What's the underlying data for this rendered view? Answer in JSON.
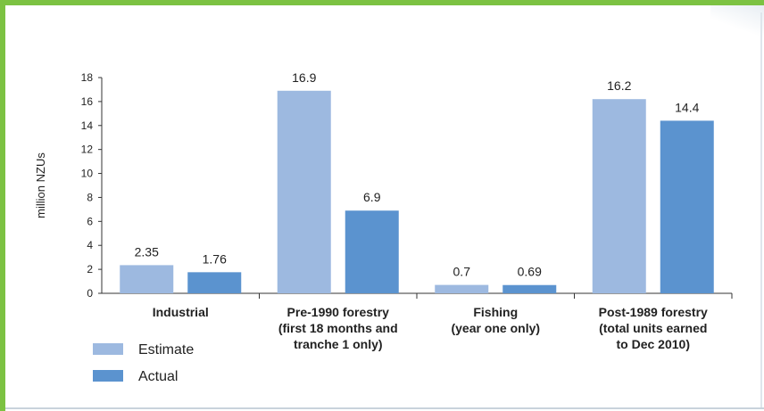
{
  "chart_data": {
    "type": "bar",
    "ylabel": "million NZUs",
    "ylim": [
      0,
      18
    ],
    "yticks": [
      0,
      2,
      4,
      6,
      8,
      10,
      12,
      14,
      16,
      18
    ],
    "categories": [
      [
        "Industrial"
      ],
      [
        "Pre-1990 forestry",
        "(first 18 months and",
        "tranche 1 only)"
      ],
      [
        "Fishing",
        "(year one only)"
      ],
      [
        "Post-1989 forestry",
        "(total units earned",
        "to Dec 2010)"
      ]
    ],
    "series": [
      {
        "name": "Estimate",
        "color": "#9db9e0",
        "values": [
          2.35,
          16.9,
          0.7,
          16.2
        ],
        "labels": [
          "2.35",
          "16.9",
          "0.7",
          "16.2"
        ]
      },
      {
        "name": "Actual",
        "color": "#5b93cf",
        "values": [
          1.76,
          6.9,
          0.69,
          14.4
        ],
        "labels": [
          "1.76",
          "6.9",
          "0.69",
          "14.4"
        ]
      }
    ],
    "legend": "bottom-left",
    "grid": false
  }
}
